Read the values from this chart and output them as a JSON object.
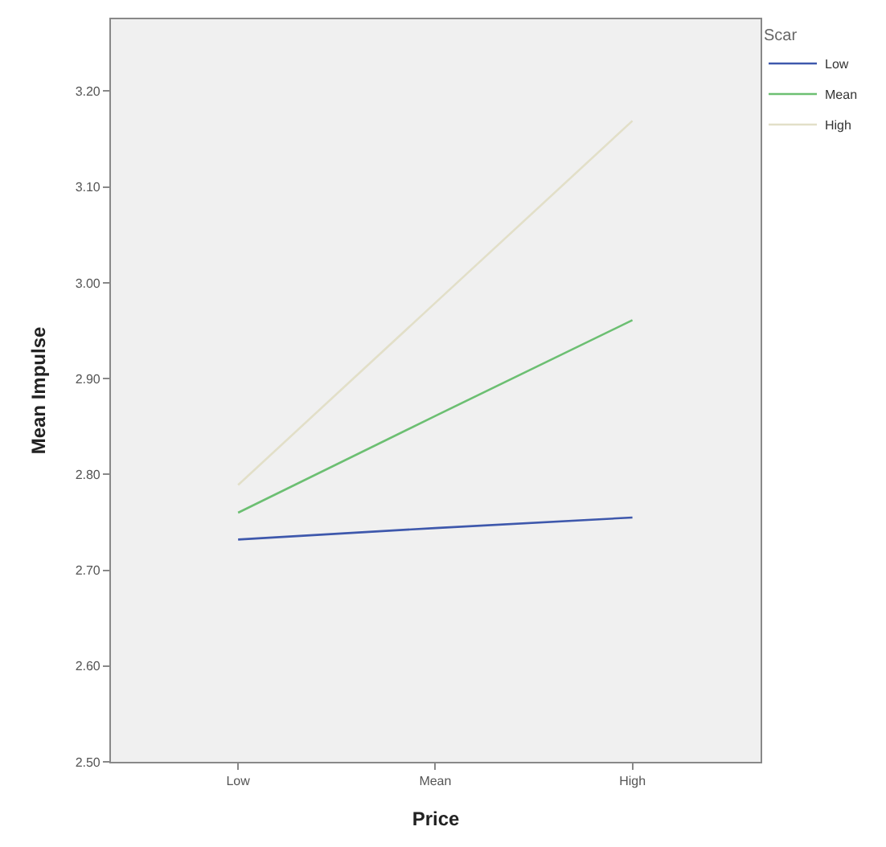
{
  "chart_data": {
    "type": "line",
    "xlabel": "Price",
    "ylabel": "Mean Impulse",
    "legend_title": "Scar",
    "categories": [
      "Low",
      "Mean",
      "High"
    ],
    "series": [
      {
        "name": "Low",
        "color": "#3e58ac",
        "values": [
          2.732,
          2.744,
          2.755
        ]
      },
      {
        "name": "Mean",
        "color": "#6cbf72",
        "values": [
          2.76,
          2.861,
          2.961
        ]
      },
      {
        "name": "High",
        "color": "#e2dfc8",
        "values": [
          2.789,
          2.979,
          3.169
        ]
      }
    ],
    "ylim": [
      2.5,
      3.275
    ],
    "yticks": [
      {
        "value": 2.5,
        "label": "2.50"
      },
      {
        "value": 2.6,
        "label": "2.60"
      },
      {
        "value": 2.7,
        "label": "2.70"
      },
      {
        "value": 2.8,
        "label": "2.80"
      },
      {
        "value": 2.9,
        "label": "2.90"
      },
      {
        "value": 3.0,
        "label": "3.00"
      },
      {
        "value": 3.1,
        "label": "3.10"
      },
      {
        "value": 3.2,
        "label": "3.20"
      }
    ],
    "grid": false,
    "legend": "top right",
    "marker": "none",
    "line_style": "solid"
  }
}
